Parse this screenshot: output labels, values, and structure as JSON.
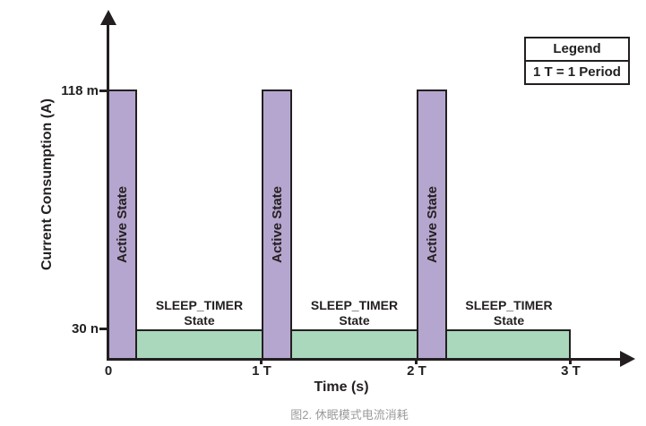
{
  "figure": {
    "caption": "图2. 休眠模式电流消耗"
  },
  "axes": {
    "y_label": "Current Consumption (A)",
    "x_label": "Time (s)",
    "y_ticks": [
      "118 m",
      "30 n"
    ],
    "x_ticks": [
      "0",
      "1 T",
      "2 T",
      "3 T"
    ]
  },
  "legend": {
    "title": "Legend",
    "entry": "1 T = 1 Period"
  },
  "bars": {
    "active_label": "Active State",
    "sleep_label_line1": "SLEEP_TIMER",
    "sleep_label_line2": "State"
  },
  "colors": {
    "active": "#b5a6cf",
    "sleep": "#a9d8bd",
    "line": "#231f20",
    "caption": "#9b9b9b"
  },
  "chart_data": {
    "type": "bar",
    "title": "图2. 休眠模式电流消耗",
    "xlabel": "Time (s)",
    "ylabel": "Current Consumption (A)",
    "x_tick_labels": [
      "0",
      "1 T",
      "2 T",
      "3 T"
    ],
    "y_tick_labels": [
      "30 n",
      "118 m"
    ],
    "legend_position": "top-right",
    "legend_title": "Legend",
    "legend_entries": [
      "1 T = 1 Period"
    ],
    "grid": false,
    "series": [
      {
        "name": "Active State",
        "color": "#b5a6cf",
        "value": "118 m (A)",
        "intervals_T": [
          [
            0,
            0.2
          ],
          [
            1,
            1.2
          ],
          [
            2,
            2.2
          ]
        ]
      },
      {
        "name": "SLEEP_TIMER State",
        "color": "#a9d8bd",
        "value": "30 n (A)",
        "intervals_T": [
          [
            0.2,
            1
          ],
          [
            1.2,
            2
          ],
          [
            2.2,
            3
          ]
        ]
      }
    ]
  }
}
